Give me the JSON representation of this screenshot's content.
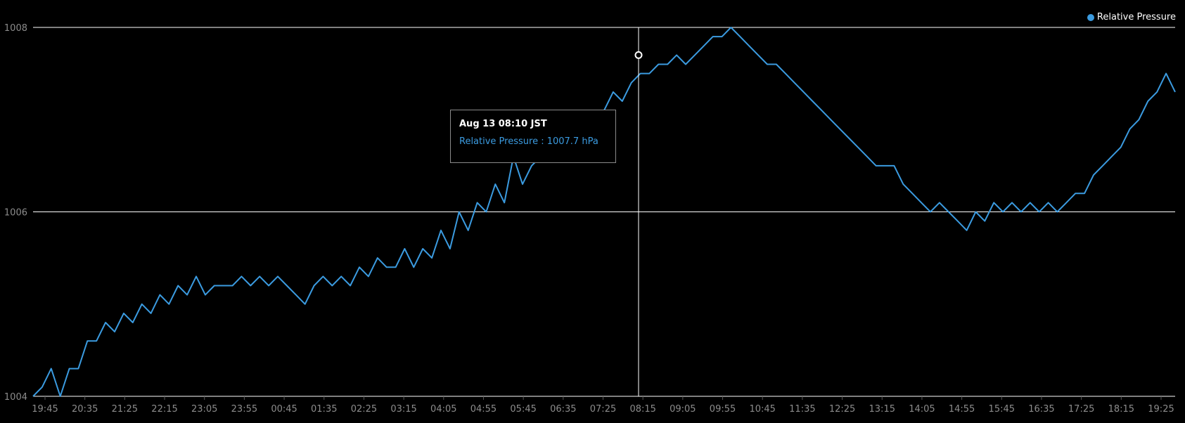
{
  "chart_data": {
    "type": "line",
    "colors": {
      "series": "#3b9be0",
      "grid": "#ffffff",
      "axis_text": "#8c8c8c",
      "background": "#000000"
    },
    "grid": true,
    "legend": "top-right",
    "ylim": [
      1004,
      1008
    ],
    "y_ticks": [
      "1008",
      "1006",
      "1004"
    ],
    "x_ticks": [
      "19:45",
      "20:35",
      "21:25",
      "22:15",
      "23:05",
      "23:55",
      "00:45",
      "01:35",
      "02:25",
      "03:15",
      "04:05",
      "04:55",
      "05:45",
      "06:35",
      "07:25",
      "08:15",
      "09:05",
      "09:55",
      "10:45",
      "11:35",
      "12:25",
      "13:15",
      "14:05",
      "14:55",
      "15:45",
      "16:35",
      "17:25",
      "18:15",
      "19:25"
    ],
    "series": [
      {
        "name": "Relative Pressure",
        "color": "#3b9be0",
        "values": [
          1004.0,
          1004.1,
          1004.3,
          1004.0,
          1004.3,
          1004.3,
          1004.6,
          1004.6,
          1004.8,
          1004.7,
          1004.9,
          1004.8,
          1005.0,
          1004.9,
          1005.1,
          1005.0,
          1005.2,
          1005.1,
          1005.3,
          1005.1,
          1005.2,
          1005.2,
          1005.2,
          1005.3,
          1005.2,
          1005.3,
          1005.2,
          1005.3,
          1005.2,
          1005.1,
          1005.0,
          1005.2,
          1005.3,
          1005.2,
          1005.3,
          1005.2,
          1005.4,
          1005.3,
          1005.5,
          1005.4,
          1005.4,
          1005.6,
          1005.4,
          1005.6,
          1005.5,
          1005.8,
          1005.6,
          1006.0,
          1005.8,
          1006.1,
          1006.0,
          1006.3,
          1006.1,
          1006.6,
          1006.3,
          1006.5,
          1006.6,
          1006.6,
          1006.8,
          1006.8,
          1006.9,
          1007.0,
          1007.1,
          1007.1,
          1007.3,
          1007.2,
          1007.4,
          1007.5,
          1007.5,
          1007.6,
          1007.6,
          1007.7,
          1007.6,
          1007.7,
          1007.8,
          1007.9,
          1007.9,
          1008.0,
          1007.9,
          1007.8,
          1007.7,
          1007.6,
          1007.6,
          1007.5,
          1007.4,
          1007.3,
          1007.2,
          1007.1,
          1007.0,
          1006.9,
          1006.8,
          1006.7,
          1006.6,
          1006.5,
          1006.5,
          1006.5,
          1006.3,
          1006.2,
          1006.1,
          1006.0,
          1006.1,
          1006.0,
          1005.9,
          1005.8,
          1006.0,
          1005.9,
          1006.1,
          1006.0,
          1006.1,
          1006.0,
          1006.1,
          1006.0,
          1006.1,
          1006.0,
          1006.1,
          1006.2,
          1006.2,
          1006.4,
          1006.5,
          1006.6,
          1006.7,
          1006.9,
          1007.0,
          1007.2,
          1007.3,
          1007.5,
          1007.3
        ]
      }
    ],
    "tooltip": {
      "title": "Aug 13 08:10 JST",
      "text": "Relative Pressure : 1007.7 hPa",
      "time": "08:10",
      "value": 1007.7
    }
  }
}
